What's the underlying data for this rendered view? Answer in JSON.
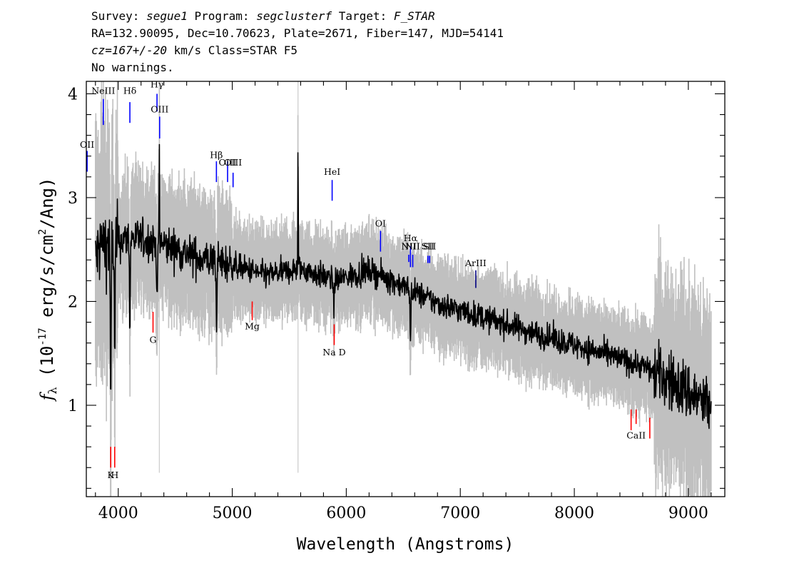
{
  "header": {
    "line1": {
      "survey_label": "Survey: ",
      "survey": "segue1",
      "program_label": " Program: ",
      "program": "segclusterf",
      "target_label": " Target: ",
      "target": "F_STAR"
    },
    "line2": "RA=132.90095, Dec=10.70623, Plate=2671, Fiber=147, MJD=54141",
    "line3": {
      "cz": "cz=167+/-20",
      "rest": " km/s Class=STAR F5"
    },
    "line4": "No warnings."
  },
  "chart_data": {
    "type": "line",
    "xlabel": "Wavelength (Angstroms)",
    "ylabel_parts": {
      "f": "f",
      "sub": "λ",
      "open": " (10",
      "exp1": "-17",
      "mid": " erg/s/cm",
      "exp2": "2",
      "close": "/Ang)"
    },
    "xlim": [
      3720,
      9320
    ],
    "ylim": [
      0.12,
      4.12
    ],
    "xticks": [
      4000,
      5000,
      6000,
      7000,
      8000,
      9000
    ],
    "yticks": [
      1,
      2,
      3,
      4
    ],
    "xtick_labels": [
      "4000",
      "5000",
      "6000",
      "7000",
      "8000",
      "9000"
    ],
    "ytick_labels": [
      "1",
      "2",
      "3",
      "4"
    ],
    "grid": false,
    "series": [
      {
        "role": "error",
        "color": "#c0c0c0"
      },
      {
        "role": "flux",
        "color": "#000000"
      }
    ],
    "continuum_knots": {
      "x": [
        3800,
        3850,
        3950,
        4100,
        4400,
        4700,
        5000,
        5300,
        5600,
        5900,
        6200,
        6500,
        6800,
        7100,
        7400,
        7700,
        8000,
        8300,
        8600,
        8900,
        9200
      ],
      "y": [
        2.4,
        2.55,
        2.55,
        2.62,
        2.55,
        2.42,
        2.35,
        2.25,
        2.32,
        2.2,
        2.3,
        2.15,
        1.98,
        1.88,
        1.78,
        1.68,
        1.58,
        1.48,
        1.38,
        1.2,
        0.98
      ]
    },
    "absorption_features": [
      {
        "x": 3934,
        "depth": 1.75
      },
      {
        "x": 3969,
        "depth": 1.2
      },
      {
        "x": 4102,
        "depth": 0.9
      },
      {
        "x": 4340,
        "depth": 0.7
      },
      {
        "x": 4861,
        "depth": 0.55
      },
      {
        "x": 5890,
        "depth": 0.25
      },
      {
        "x": 6563,
        "depth": 0.55
      }
    ],
    "emission_spikes": [
      {
        "x": 5577,
        "height": 1.25
      },
      {
        "x": 4360,
        "height": 1.0
      }
    ],
    "lines": [
      {
        "label": "NeIII",
        "x": 3869,
        "color": "#0000ff",
        "y0": 3.7,
        "y1": 3.95,
        "label_y": 4.0
      },
      {
        "label": "Hδ",
        "x": 4102,
        "color": "#0000ff",
        "y0": 3.72,
        "y1": 3.92,
        "label_y": 4.0
      },
      {
        "label": "Hγ",
        "x": 4340,
        "color": "#0000ff",
        "y0": 3.83,
        "y1": 4.0,
        "label_y": 4.06
      },
      {
        "label": "OIII",
        "x": 4363,
        "color": "#0000ff",
        "y0": 3.57,
        "y1": 3.78,
        "label_y": 3.82
      },
      {
        "label": "OII",
        "x": 3727,
        "color": "#0000ff",
        "y0": 3.25,
        "y1": 3.45,
        "label_y": 3.48
      },
      {
        "label": "Hβ",
        "x": 4861,
        "color": "#0000ff",
        "y0": 3.15,
        "y1": 3.35,
        "label_y": 3.38
      },
      {
        "label": "OIII",
        "x": 4959,
        "color": "#0000ff",
        "y0": 3.15,
        "y1": 3.35,
        "label_y": 3.31
      },
      {
        "label": "OIII",
        "x": 5007,
        "color": "#0000ff",
        "y0": 3.1,
        "y1": 3.24,
        "label_y": 3.31
      },
      {
        "label": "HeI",
        "x": 5876,
        "color": "#0000ff",
        "y0": 2.97,
        "y1": 3.17,
        "label_y": 3.22
      },
      {
        "label": "OI",
        "x": 6300,
        "color": "#0000ff",
        "y0": 2.48,
        "y1": 2.68,
        "label_y": 2.72
      },
      {
        "label": "NII",
        "x": 6548,
        "color": "#0000ff",
        "y0": 2.38,
        "y1": 2.45,
        "label_y": 2.5
      },
      {
        "label": "Hα",
        "x": 6563,
        "color": "#0000ff",
        "y0": 2.33,
        "y1": 2.53,
        "label_y": 2.58
      },
      {
        "label": "NII",
        "x": 6583,
        "color": "#0000ff",
        "y0": 2.33,
        "y1": 2.45,
        "label_y": 2.5
      },
      {
        "label": "SII",
        "x": 6716,
        "color": "#0000ff",
        "y0": 2.37,
        "y1": 2.44,
        "label_y": 2.5
      },
      {
        "label": "SII",
        "x": 6731,
        "color": "#0000ff",
        "y0": 2.37,
        "y1": 2.44,
        "label_y": 2.5
      },
      {
        "label": "ArIII",
        "x": 7136,
        "color": "#000080",
        "y0": 2.13,
        "y1": 2.3,
        "label_y": 2.34
      },
      {
        "label": "G",
        "x": 4305,
        "color": "#ff0000",
        "y0": 1.7,
        "y1": 1.9,
        "label_y": 1.6
      },
      {
        "label": "Mg",
        "x": 5175,
        "color": "#ff0000",
        "y0": 1.82,
        "y1": 2.0,
        "label_y": 1.73
      },
      {
        "label": "Na D",
        "x": 5894,
        "color": "#ff0000",
        "y0": 1.58,
        "y1": 1.78,
        "label_y": 1.48
      },
      {
        "label": "K",
        "x": 3934,
        "color": "#ff0000",
        "y0": 0.4,
        "y1": 0.6,
        "label_y": 0.3
      },
      {
        "label": "H",
        "x": 3969,
        "color": "#ff0000",
        "y0": 0.4,
        "y1": 0.6,
        "label_y": 0.3
      },
      {
        "label": "CaII",
        "x": 8542,
        "color": "#ff0000",
        "y0": 0.82,
        "y1": 0.96,
        "label_y": 0.68
      },
      {
        "label": "",
        "x": 8498,
        "color": "#ff0000",
        "y0": 0.76,
        "y1": 0.96,
        "label_y": 0.68
      },
      {
        "label": "",
        "x": 8662,
        "color": "#ff0000",
        "y0": 0.68,
        "y1": 0.88,
        "label_y": 0.68
      }
    ]
  }
}
